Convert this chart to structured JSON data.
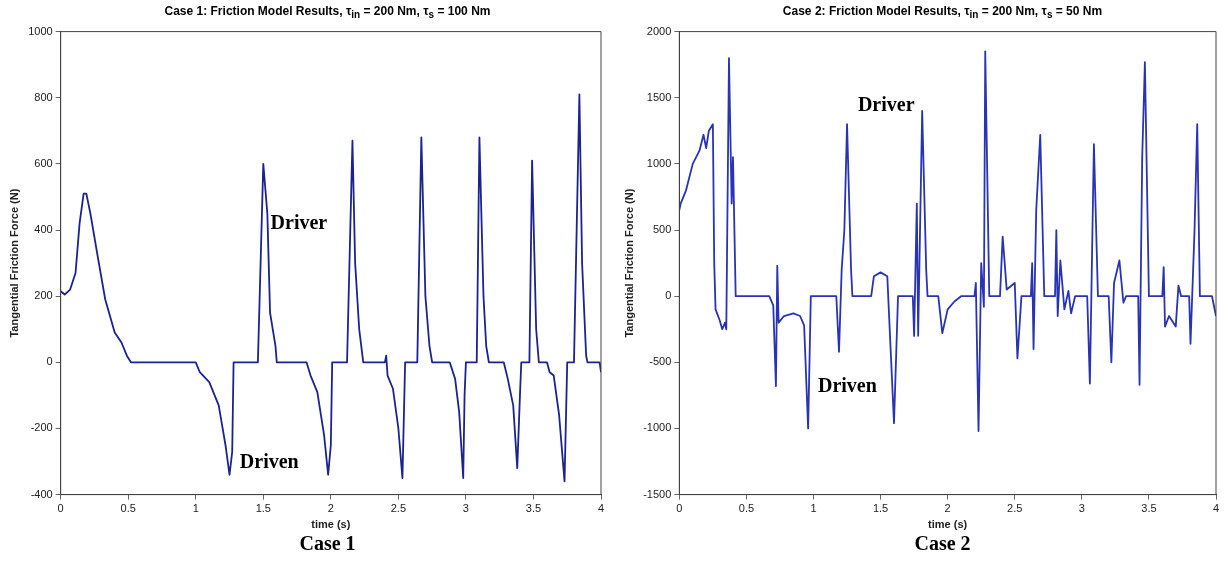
{
  "chart_data": [
    {
      "type": "line",
      "title": "Case 1: Friction Model Results, τ$_{in}$ = 200 Nm, τ$_{s}$ = 100 Nm",
      "xlabel": "time (s)",
      "ylabel": "Tangential Friction Force (N)",
      "xlim": [
        0,
        4
      ],
      "xticks": [
        0,
        0.5,
        1,
        1.5,
        2,
        2.5,
        3,
        3.5,
        4
      ],
      "ylim": [
        -400,
        1000
      ],
      "yticks": [
        -400,
        -200,
        0,
        200,
        400,
        600,
        800,
        1000
      ],
      "grid": false,
      "legend": false,
      "marker": "none",
      "line_style": "solid",
      "annotations": [
        "Driver",
        "Driven",
        "Case 1"
      ],
      "series": [
        {
          "color": "#1c2290",
          "x": [
            0,
            0.03,
            0.07,
            0.11,
            0.14,
            0.17,
            0.19,
            0.22,
            0.27,
            0.33,
            0.4,
            0.45,
            0.49,
            0.52,
            1.0,
            1.03,
            1.1,
            1.17,
            1.22,
            1.25,
            1.27,
            1.28,
            1.46,
            1.5,
            1.53,
            1.55,
            1.59,
            1.6,
            1.82,
            1.85,
            1.9,
            1.95,
            1.98,
            2.0,
            2.01,
            2.12,
            2.16,
            2.18,
            2.21,
            2.24,
            2.4,
            2.41,
            2.42,
            2.46,
            2.5,
            2.53,
            2.55,
            2.64,
            2.67,
            2.7,
            2.73,
            2.75,
            2.88,
            2.92,
            2.95,
            2.98,
            2.99,
            3.0,
            3.08,
            3.1,
            3.13,
            3.15,
            3.17,
            3.28,
            3.31,
            3.35,
            3.38,
            3.4,
            3.41,
            3.47,
            3.49,
            3.52,
            3.54,
            3.6,
            3.62,
            3.65,
            3.69,
            3.73,
            3.75,
            3.8,
            3.84,
            3.86,
            3.89,
            3.9,
            3.99,
            4.0
          ],
          "values": [
            215,
            205,
            220,
            270,
            420,
            510,
            510,
            450,
            330,
            190,
            90,
            60,
            20,
            0,
            0,
            -30,
            -60,
            -130,
            -250,
            -340,
            -270,
            0,
            0,
            600,
            450,
            150,
            50,
            0,
            0,
            -40,
            -90,
            -220,
            -340,
            -250,
            0,
            0,
            670,
            300,
            100,
            0,
            0,
            20,
            -40,
            -80,
            -200,
            -350,
            0,
            0,
            680,
            200,
            50,
            0,
            0,
            -50,
            -150,
            -350,
            -100,
            0,
            0,
            680,
            200,
            50,
            0,
            0,
            -50,
            -130,
            -320,
            -100,
            0,
            0,
            610,
            100,
            0,
            0,
            -30,
            -40,
            -160,
            -360,
            0,
            0,
            810,
            300,
            20,
            0,
            0,
            -30
          ]
        }
      ]
    },
    {
      "type": "line",
      "title": "Case 2: Friction Model Results, τ$_{in}$ = 200 Nm, τ$_{s}$ = 50 Nm",
      "xlabel": "time (s)",
      "ylabel": "Tangential Friction Force (N)",
      "xlim": [
        0,
        4
      ],
      "xticks": [
        0,
        0.5,
        1,
        1.5,
        2,
        2.5,
        3,
        3.5,
        4
      ],
      "ylim": [
        -1500,
        2000
      ],
      "yticks": [
        -1500,
        -1000,
        -500,
        0,
        500,
        1000,
        1500,
        2000
      ],
      "grid": false,
      "legend": false,
      "marker": "none",
      "line_style": "solid",
      "annotations": [
        "Driver",
        "Driven",
        "Case 2"
      ],
      "series": [
        {
          "color": "#2a33b4",
          "x": [
            0,
            0.01,
            0.05,
            0.1,
            0.15,
            0.18,
            0.2,
            0.22,
            0.25,
            0.26,
            0.27,
            0.3,
            0.32,
            0.34,
            0.35,
            0.37,
            0.39,
            0.4,
            0.42,
            0.67,
            0.7,
            0.72,
            0.73,
            0.74,
            0.78,
            0.85,
            0.9,
            0.93,
            0.96,
            0.98,
            1.17,
            1.19,
            1.21,
            1.23,
            1.25,
            1.28,
            1.29,
            1.43,
            1.45,
            1.5,
            1.55,
            1.6,
            1.63,
            1.74,
            1.75,
            1.77,
            1.78,
            1.81,
            1.84,
            1.85,
            1.93,
            1.96,
            2.0,
            2.05,
            2.1,
            2.2,
            2.21,
            2.23,
            2.25,
            2.27,
            2.28,
            2.31,
            2.39,
            2.41,
            2.44,
            2.5,
            2.52,
            2.55,
            2.62,
            2.63,
            2.64,
            2.66,
            2.69,
            2.72,
            2.8,
            2.81,
            2.82,
            2.84,
            2.87,
            2.9,
            2.92,
            2.95,
            3.04,
            3.06,
            3.09,
            3.12,
            3.2,
            3.22,
            3.24,
            3.28,
            3.31,
            3.33,
            3.42,
            3.43,
            3.45,
            3.47,
            3.5,
            3.6,
            3.61,
            3.62,
            3.65,
            3.7,
            3.72,
            3.74,
            3.8,
            3.81,
            3.84,
            3.86,
            3.88,
            3.97,
            4.0
          ],
          "values": [
            650,
            700,
            800,
            1000,
            1100,
            1220,
            1120,
            1250,
            1300,
            250,
            -100,
            -180,
            -250,
            -200,
            -250,
            1800,
            700,
            1050,
            0,
            0,
            -70,
            -680,
            230,
            -200,
            -150,
            -130,
            -150,
            -220,
            -1000,
            0,
            0,
            -420,
            200,
            500,
            1300,
            200,
            0,
            0,
            150,
            180,
            150,
            -960,
            0,
            0,
            -300,
            700,
            -300,
            1400,
            200,
            0,
            0,
            -280,
            -100,
            -40,
            0,
            0,
            100,
            -1020,
            250,
            -80,
            1850,
            0,
            0,
            450,
            50,
            100,
            -470,
            0,
            0,
            250,
            -400,
            650,
            1220,
            0,
            0,
            500,
            -150,
            270,
            -100,
            40,
            -130,
            0,
            0,
            -660,
            1150,
            0,
            0,
            -500,
            100,
            270,
            -50,
            0,
            0,
            -670,
            1050,
            1770,
            0,
            0,
            220,
            -230,
            -150,
            -230,
            80,
            0,
            0,
            -360,
            500,
            1300,
            0,
            0,
            -150
          ]
        }
      ]
    }
  ]
}
